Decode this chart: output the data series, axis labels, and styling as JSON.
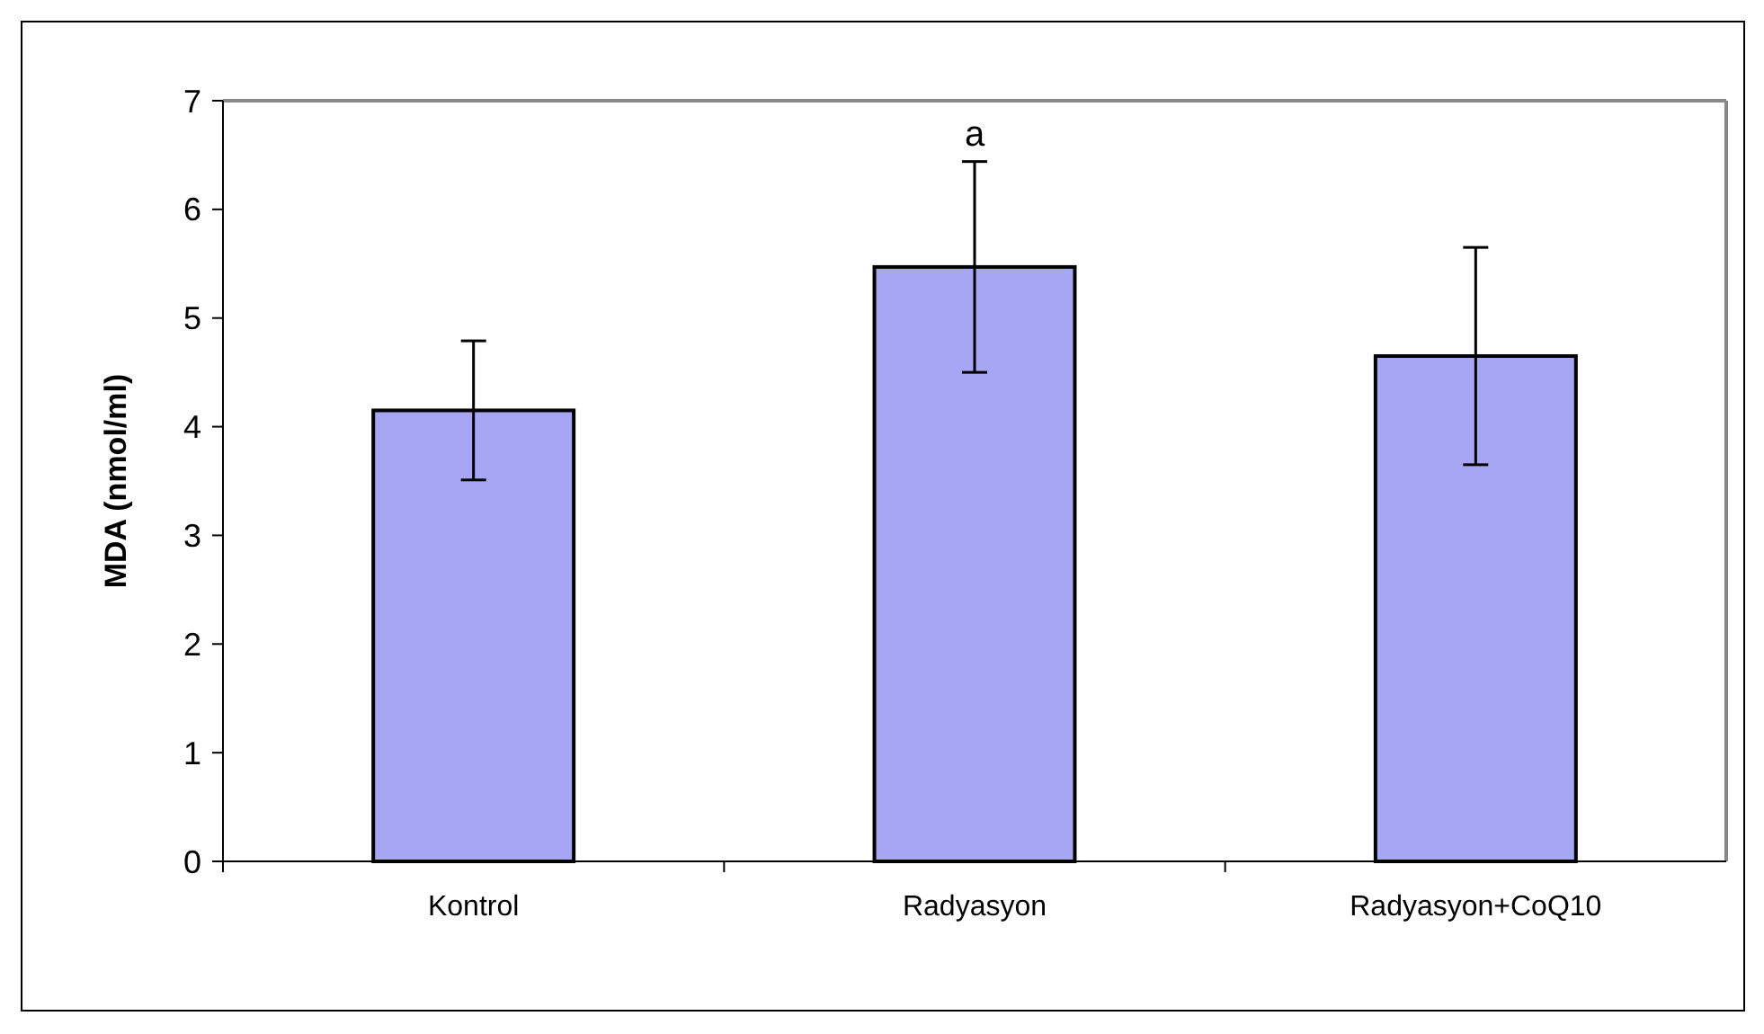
{
  "chart_data": {
    "type": "bar",
    "ylabel": "MDA (nmol/ml)",
    "categories": [
      "Kontrol",
      "Radyasyon",
      "Radyasyon+CoQ10"
    ],
    "values": [
      4.15,
      5.47,
      4.65
    ],
    "errors": [
      0.64,
      0.97,
      1.0
    ],
    "color": "#a6a6f5",
    "ylim": [
      0,
      7
    ],
    "yticks": [
      0,
      1,
      2,
      3,
      4,
      5,
      6,
      7
    ],
    "annotations": [
      {
        "text": "a",
        "x": "Radyasyon",
        "y": 6.45
      }
    ],
    "grid": false
  }
}
